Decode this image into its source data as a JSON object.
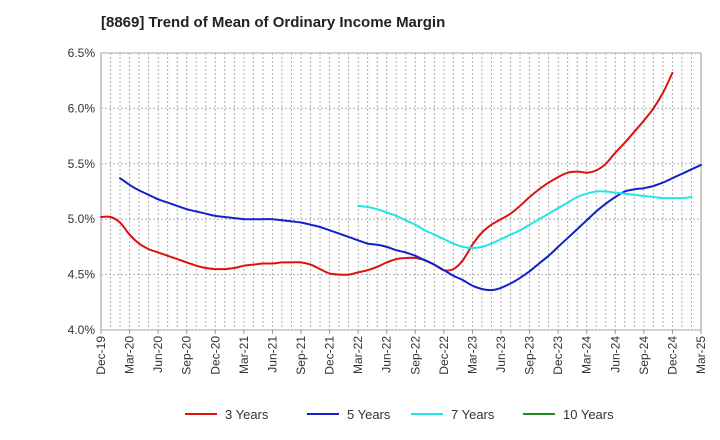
{
  "chart_data": {
    "type": "line",
    "title": "[8869]  Trend of Mean of Ordinary Income Margin",
    "xlabel": "",
    "ylabel": "",
    "ylim": [
      4.0,
      6.5
    ],
    "y_ticks": [
      4.0,
      4.5,
      5.0,
      5.5,
      6.0,
      6.5
    ],
    "y_tick_labels": [
      "4.0%",
      "4.5%",
      "5.0%",
      "5.5%",
      "6.0%",
      "6.5%"
    ],
    "x_tick_labels": [
      "Dec-19",
      "Mar-20",
      "Jun-20",
      "Sep-20",
      "Dec-20",
      "Mar-21",
      "Jun-21",
      "Sep-21",
      "Dec-21",
      "Mar-22",
      "Jun-22",
      "Sep-22",
      "Dec-22",
      "Mar-23",
      "Jun-23",
      "Sep-23",
      "Dec-23",
      "Mar-24",
      "Jun-24",
      "Sep-24",
      "Dec-24",
      "Mar-25"
    ],
    "x_range_months": [
      0,
      63
    ],
    "grid": true,
    "legend_position": "bottom",
    "series": [
      {
        "name": "3 Years",
        "color": "#dd1111",
        "points": [
          [
            0,
            5.02
          ],
          [
            1,
            5.02
          ],
          [
            2,
            4.97
          ],
          [
            3,
            4.86
          ],
          [
            4,
            4.78
          ],
          [
            5,
            4.73
          ],
          [
            6,
            4.7
          ],
          [
            7,
            4.67
          ],
          [
            8,
            4.64
          ],
          [
            9,
            4.61
          ],
          [
            10,
            4.58
          ],
          [
            11,
            4.56
          ],
          [
            12,
            4.55
          ],
          [
            13,
            4.55
          ],
          [
            14,
            4.56
          ],
          [
            15,
            4.58
          ],
          [
            16,
            4.59
          ],
          [
            17,
            4.6
          ],
          [
            18,
            4.6
          ],
          [
            19,
            4.61
          ],
          [
            20,
            4.61
          ],
          [
            21,
            4.61
          ],
          [
            22,
            4.59
          ],
          [
            23,
            4.55
          ],
          [
            24,
            4.51
          ],
          [
            25,
            4.5
          ],
          [
            26,
            4.5
          ],
          [
            27,
            4.52
          ],
          [
            28,
            4.54
          ],
          [
            29,
            4.57
          ],
          [
            30,
            4.61
          ],
          [
            31,
            4.64
          ],
          [
            32,
            4.65
          ],
          [
            33,
            4.65
          ],
          [
            34,
            4.63
          ],
          [
            35,
            4.59
          ],
          [
            36,
            4.54
          ],
          [
            37,
            4.55
          ],
          [
            38,
            4.63
          ],
          [
            39,
            4.77
          ],
          [
            40,
            4.88
          ],
          [
            41,
            4.95
          ],
          [
            42,
            5.0
          ],
          [
            43,
            5.05
          ],
          [
            44,
            5.12
          ],
          [
            45,
            5.2
          ],
          [
            46,
            5.27
          ],
          [
            47,
            5.33
          ],
          [
            48,
            5.38
          ],
          [
            49,
            5.42
          ],
          [
            50,
            5.43
          ],
          [
            51,
            5.42
          ],
          [
            52,
            5.44
          ],
          [
            53,
            5.5
          ],
          [
            54,
            5.6
          ],
          [
            55,
            5.69
          ],
          [
            56,
            5.79
          ],
          [
            57,
            5.89
          ],
          [
            58,
            6.0
          ],
          [
            59,
            6.14
          ],
          [
            60,
            6.32
          ]
        ]
      },
      {
        "name": "5 Years",
        "color": "#1122cc",
        "points": [
          [
            2,
            5.37
          ],
          [
            3,
            5.31
          ],
          [
            4,
            5.26
          ],
          [
            5,
            5.22
          ],
          [
            6,
            5.18
          ],
          [
            7,
            5.15
          ],
          [
            8,
            5.12
          ],
          [
            9,
            5.09
          ],
          [
            10,
            5.07
          ],
          [
            11,
            5.05
          ],
          [
            12,
            5.03
          ],
          [
            13,
            5.02
          ],
          [
            14,
            5.01
          ],
          [
            15,
            5.0
          ],
          [
            16,
            5.0
          ],
          [
            17,
            5.0
          ],
          [
            18,
            5.0
          ],
          [
            19,
            4.99
          ],
          [
            20,
            4.98
          ],
          [
            21,
            4.97
          ],
          [
            22,
            4.95
          ],
          [
            23,
            4.93
          ],
          [
            24,
            4.9
          ],
          [
            25,
            4.87
          ],
          [
            26,
            4.84
          ],
          [
            27,
            4.81
          ],
          [
            28,
            4.78
          ],
          [
            29,
            4.77
          ],
          [
            30,
            4.75
          ],
          [
            31,
            4.72
          ],
          [
            32,
            4.7
          ],
          [
            33,
            4.67
          ],
          [
            34,
            4.63
          ],
          [
            35,
            4.59
          ],
          [
            36,
            4.54
          ],
          [
            37,
            4.49
          ],
          [
            38,
            4.45
          ],
          [
            39,
            4.4
          ],
          [
            40,
            4.37
          ],
          [
            41,
            4.36
          ],
          [
            42,
            4.38
          ],
          [
            43,
            4.42
          ],
          [
            44,
            4.47
          ],
          [
            45,
            4.53
          ],
          [
            46,
            4.6
          ],
          [
            47,
            4.67
          ],
          [
            48,
            4.75
          ],
          [
            49,
            4.83
          ],
          [
            50,
            4.91
          ],
          [
            51,
            4.99
          ],
          [
            52,
            5.07
          ],
          [
            53,
            5.14
          ],
          [
            54,
            5.2
          ],
          [
            55,
            5.25
          ],
          [
            56,
            5.27
          ],
          [
            57,
            5.28
          ],
          [
            58,
            5.3
          ],
          [
            59,
            5.33
          ],
          [
            60,
            5.37
          ],
          [
            61,
            5.41
          ],
          [
            62,
            5.45
          ],
          [
            63,
            5.49
          ]
        ]
      },
      {
        "name": "7 Years",
        "color": "#22e5e5",
        "points": [
          [
            27,
            5.12
          ],
          [
            28,
            5.11
          ],
          [
            29,
            5.09
          ],
          [
            30,
            5.06
          ],
          [
            31,
            5.03
          ],
          [
            32,
            4.99
          ],
          [
            33,
            4.95
          ],
          [
            34,
            4.9
          ],
          [
            35,
            4.86
          ],
          [
            36,
            4.82
          ],
          [
            37,
            4.78
          ],
          [
            38,
            4.75
          ],
          [
            39,
            4.74
          ],
          [
            40,
            4.75
          ],
          [
            41,
            4.78
          ],
          [
            42,
            4.82
          ],
          [
            43,
            4.86
          ],
          [
            44,
            4.9
          ],
          [
            45,
            4.95
          ],
          [
            46,
            5.0
          ],
          [
            47,
            5.05
          ],
          [
            48,
            5.1
          ],
          [
            49,
            5.15
          ],
          [
            50,
            5.2
          ],
          [
            51,
            5.23
          ],
          [
            52,
            5.25
          ],
          [
            53,
            5.25
          ],
          [
            54,
            5.24
          ],
          [
            55,
            5.23
          ],
          [
            56,
            5.22
          ],
          [
            57,
            5.21
          ],
          [
            58,
            5.2
          ],
          [
            59,
            5.19
          ],
          [
            60,
            5.19
          ],
          [
            61,
            5.19
          ],
          [
            62,
            5.2
          ]
        ]
      },
      {
        "name": "10 Years",
        "color": "#228822",
        "points": []
      }
    ]
  }
}
